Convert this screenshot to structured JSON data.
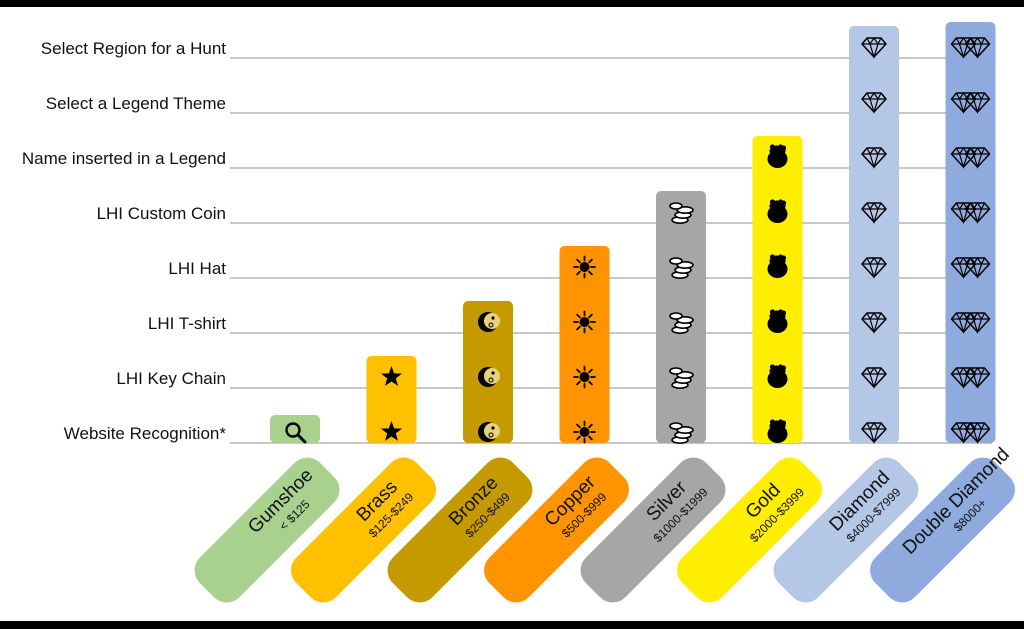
{
  "chart_data": {
    "type": "table",
    "rows": [
      "Website Recognition*",
      "LHI Key Chain",
      "LHI T-shirt",
      "LHI Hat",
      "LHI Custom Coin",
      "Name inserted in a Legend",
      "Select a Legend Theme",
      "Select Region for a Hunt"
    ],
    "tiers": [
      {
        "name": "Gumshoe",
        "price": "< $125",
        "levels": 1,
        "color": "#a9d18e",
        "icon": "magnifier-icon"
      },
      {
        "name": "Brass",
        "price": "$125-$249",
        "levels": 2,
        "color": "#ffc000",
        "icon": "star-icon"
      },
      {
        "name": "Bronze",
        "price": "$250-$499",
        "levels": 3,
        "color": "#c59a00",
        "icon": "moon-icon"
      },
      {
        "name": "Copper",
        "price": "$500-$999",
        "levels": 4,
        "color": "#ff9400",
        "icon": "sun-icon"
      },
      {
        "name": "Silver",
        "price": "$1000-$1999",
        "levels": 5,
        "color": "#a6a6a6",
        "icon": "coins-icon"
      },
      {
        "name": "Gold",
        "price": "$2000-$3999",
        "levels": 6,
        "color": "#ffee00",
        "icon": "pot-of-gold-icon"
      },
      {
        "name": "Diamond",
        "price": "$4000-$7999",
        "levels": 8,
        "color": "#b4c7e7",
        "icon": "diamond-icon"
      },
      {
        "name": "Double Diamond",
        "price": "$8000+",
        "levels": 8,
        "color": "#8faadc",
        "icon": "double-diamond-icon"
      }
    ]
  }
}
